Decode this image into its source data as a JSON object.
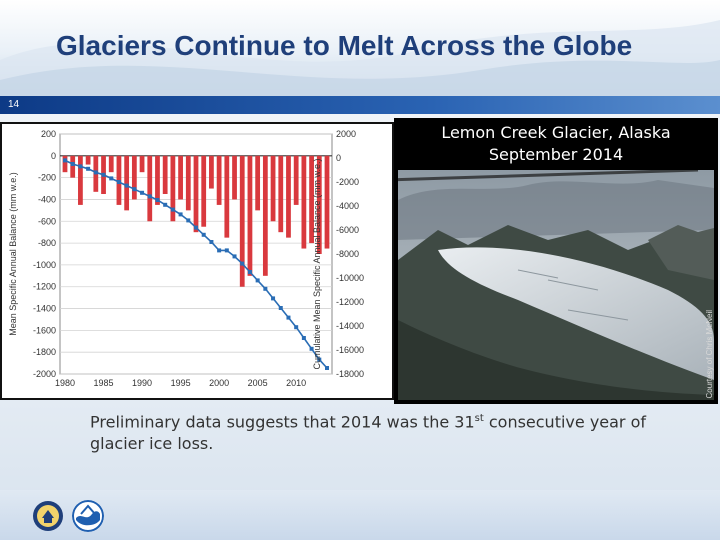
{
  "slide": {
    "title": "Glaciers Continue to Melt Across the Globe",
    "number": "14"
  },
  "photo": {
    "caption_line1": "Lemon Creek Glacier, Alaska",
    "caption_line2": "September 2014",
    "credit": "Courtesy of Chris McNeil"
  },
  "body": {
    "text_before": "Preliminary data suggests that 2014 was the 31",
    "superscript": "st",
    "text_after": " consecutive year of glacier ice loss."
  },
  "colors": {
    "bar": "#d9393e",
    "line": "#2a6db5",
    "title": "#1f3f7a",
    "accent_bar": "#0d3a86"
  },
  "icons": {
    "left_logo": "department-of-commerce-seal-icon",
    "right_logo": "noaa-logo-icon"
  },
  "chart_data": {
    "type": "bar",
    "x_tick_labels": [
      "1980",
      "1985",
      "1990",
      "1995",
      "2000",
      "2005",
      "2010"
    ],
    "xlim": [
      1980,
      2014
    ],
    "y_left": {
      "label": "Mean Specific Annual Balance (mm w.e.)",
      "lim": [
        -2000,
        200
      ],
      "ticks": [
        200,
        0,
        -200,
        -400,
        -600,
        -800,
        -1000,
        -1200,
        -1400,
        -1600,
        -1800,
        -2000
      ]
    },
    "y_right": {
      "label": "Cumulative Mean Specific Annual Balance (mm w.e.)",
      "lim": [
        -18000,
        2000
      ],
      "ticks": [
        2000,
        0,
        -2000,
        -4000,
        -6000,
        -8000,
        -10000,
        -12000,
        -14000,
        -16000,
        -18000
      ]
    },
    "grid": true,
    "series": [
      {
        "kind": "bar",
        "axis": "left",
        "x": [
          1980,
          1981,
          1982,
          1983,
          1984,
          1985,
          1986,
          1987,
          1988,
          1989,
          1990,
          1991,
          1992,
          1993,
          1994,
          1995,
          1996,
          1997,
          1998,
          1999,
          2000,
          2001,
          2002,
          2003,
          2004,
          2005,
          2006,
          2007,
          2008,
          2009,
          2010,
          2011,
          2012,
          2013,
          2014
        ],
        "values": [
          -150,
          -200,
          -450,
          -80,
          -330,
          -350,
          -150,
          -450,
          -500,
          -400,
          -150,
          -600,
          -450,
          -350,
          -600,
          -400,
          -500,
          -700,
          -650,
          -300,
          -450,
          -750,
          -400,
          -1200,
          -1100,
          -500,
          -1100,
          -600,
          -700,
          -750,
          -450,
          -850,
          -800,
          -900,
          -850
        ]
      },
      {
        "kind": "line",
        "axis": "right",
        "x": [
          1980,
          1981,
          1982,
          1983,
          1984,
          1985,
          1986,
          1987,
          1988,
          1989,
          1990,
          1991,
          1992,
          1993,
          1994,
          1995,
          1996,
          1997,
          1998,
          1999,
          2000,
          2001,
          2002,
          2003,
          2004,
          2005,
          2006,
          2007,
          2008,
          2009,
          2010,
          2011,
          2012,
          2013,
          2014
        ],
        "values": [
          -200,
          -500,
          -700,
          -900,
          -1200,
          -1400,
          -1700,
          -2000,
          -2300,
          -2600,
          -2900,
          -3200,
          -3500,
          -3900,
          -4300,
          -4700,
          -5200,
          -5800,
          -6400,
          -7000,
          -7700,
          -7700,
          -8200,
          -8800,
          -9500,
          -10200,
          -10900,
          -11700,
          -12500,
          -13300,
          -14100,
          -15000,
          -15900,
          -16800,
          -17500
        ]
      }
    ]
  }
}
